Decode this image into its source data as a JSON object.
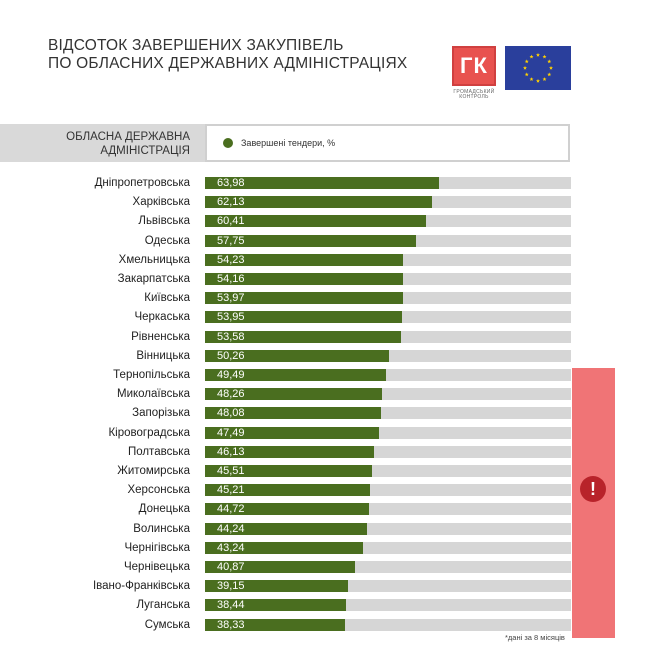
{
  "title": {
    "line1": "ВІДСОТОК ЗАВЕРШЕНИХ ЗАКУПІВЕЛЬ",
    "line2": "ПО ОБЛАСНИХ ДЕРЖАВНИХ АДМІНІСТРАЦІЯХ"
  },
  "logos": {
    "gk_text": "ГК",
    "gk_caption_1": "ГРОМАДСЬКИЙ",
    "gk_caption_2": "КОНТРОЛЬ"
  },
  "header": {
    "label_line1": "ОБЛАСНА ДЕРЖАВНА",
    "label_line2": "АДМІНІСТРАЦІЯ"
  },
  "alert": {
    "symbol": "!"
  },
  "footnote": "*дані за 8 місяців",
  "colors": {
    "bar": "#4a6e1f",
    "track": "#d6d6d6",
    "alert_band": "#f07476",
    "alert_icon": "#b8232a",
    "logo_red": "#e8524f",
    "eu_blue": "#2a3f9c",
    "eu_star": "#ffd100"
  },
  "chart_data": {
    "type": "bar",
    "orientation": "horizontal",
    "xlim": [
      0,
      100
    ],
    "legend": "top",
    "grid": false,
    "series": [
      {
        "name": "Завершені тендери, %"
      }
    ],
    "categories": [
      "Дніпропетровська",
      "Харківська",
      "Львівська",
      "Одеська",
      "Хмельницька",
      "Закарпатська",
      "Київська",
      "Черкаська",
      "Рівненська",
      "Вінницька",
      "Тернопільська",
      "Миколаївська",
      "Запорізька",
      "Кіровоградська",
      "Полтавська",
      "Житомирська",
      "Херсонська",
      "Донецька",
      "Волинська",
      "Чернігівська",
      "Чернівецька",
      "Івано-Франківська",
      "Луганська",
      "Сумська"
    ],
    "values": [
      63.98,
      62.13,
      60.41,
      57.75,
      54.23,
      54.16,
      53.97,
      53.95,
      53.58,
      50.26,
      49.49,
      48.26,
      48.08,
      47.49,
      46.13,
      45.51,
      45.21,
      44.72,
      44.24,
      43.24,
      40.87,
      39.15,
      38.44,
      38.33
    ],
    "value_labels": [
      "63,98",
      "62,13",
      "60,41",
      "57,75",
      "54,23",
      "54,16",
      "53,97",
      "53,95",
      "53,58",
      "50,26",
      "49,49",
      "48,26",
      "48,08",
      "47,49",
      "46,13",
      "45,51",
      "45,21",
      "44,72",
      "44,24",
      "43,24",
      "40,87",
      "39,15",
      "38,44",
      "38,33"
    ],
    "highlighted_from_category": "Тернопільська"
  }
}
